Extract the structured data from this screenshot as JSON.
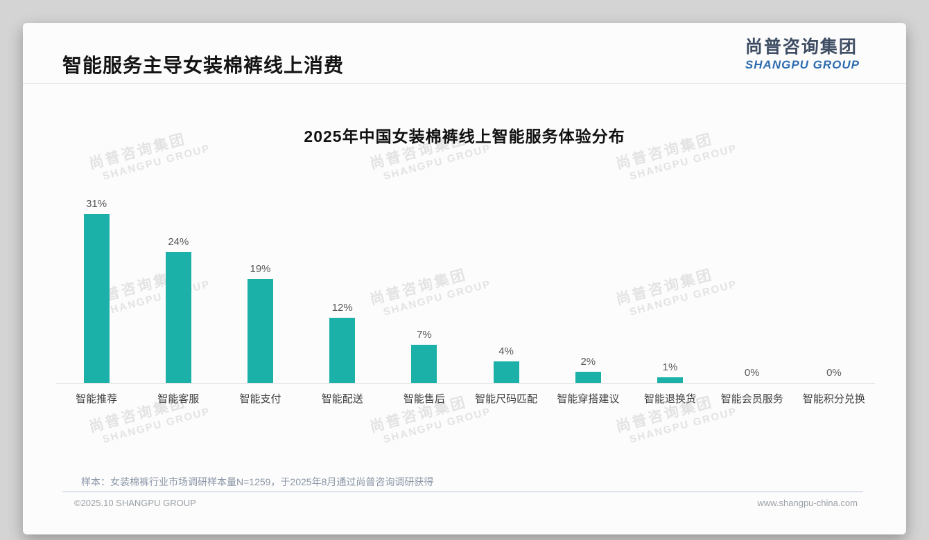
{
  "page": {
    "header": {
      "title": "智能服务主导女装棉裤线上消费",
      "logo_cn": "尚普咨询集团",
      "logo_en": "SHANGPU GROUP"
    },
    "watermark": {
      "line1": "尚普咨询集团",
      "line2": "SHANGPU GROUP"
    },
    "footnote": "样本：女装棉裤行业市场调研样本量N=1259，于2025年8月通过尚普咨询调研获得",
    "footer": {
      "copyright": "©2025.10 SHANGPU GROUP",
      "website": "www.shangpu-china.com"
    }
  },
  "colors": {
    "bar_teal": "#1bb1a9",
    "logo_dark": "#3e4d63",
    "logo_blue": "#2e6cb0",
    "axis_line": "#d9d9d9",
    "note_gray_blue": "#8a96a6"
  },
  "chart_data": {
    "type": "bar",
    "title": "2025年中国女装棉裤线上智能服务体验分布",
    "categories": [
      "智能推荐",
      "智能客服",
      "智能支付",
      "智能配送",
      "智能售后",
      "智能尺码匹配",
      "智能穿搭建议",
      "智能退换货",
      "智能会员服务",
      "智能积分兑换"
    ],
    "values": [
      31,
      24,
      19,
      12,
      7,
      4,
      2,
      1,
      0,
      0
    ],
    "value_labels": [
      "31%",
      "24%",
      "19%",
      "12%",
      "7%",
      "4%",
      "2%",
      "1%",
      "0%",
      "0%"
    ],
    "unit": "%",
    "bar_color": "#1bb1a9",
    "xlabel": "",
    "ylabel": "",
    "ylim": [
      0,
      33
    ],
    "grid": false,
    "legend": "none",
    "data_labels": "above bars"
  }
}
